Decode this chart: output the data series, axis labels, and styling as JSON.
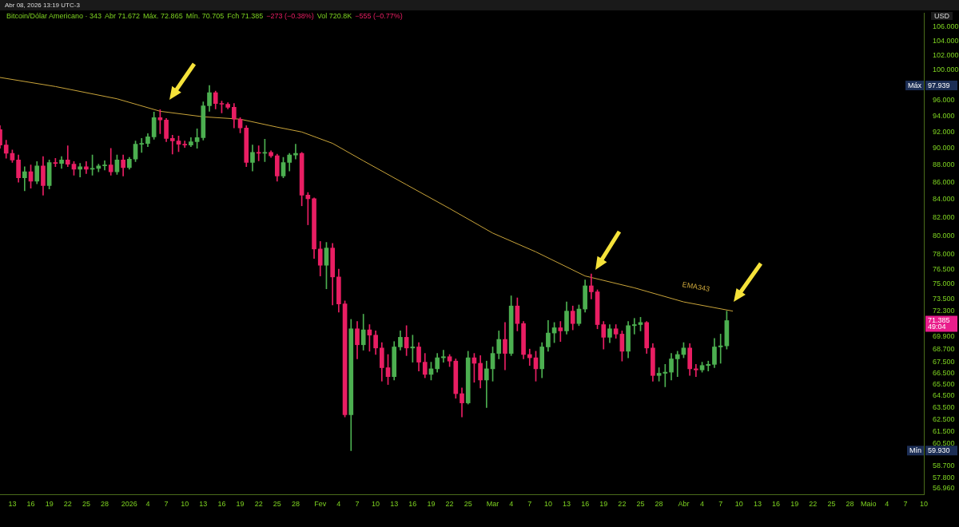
{
  "chart_data": {
    "type": "candlestick",
    "title": "Bitcoin/Dólar Americano · 343",
    "annotations": [
      "Abr 08, 2026 13:19 UTC-3",
      "Abr 71.672",
      "Máx. 72.865",
      "Mín. 70.705",
      "Fch 71.385",
      "−273 (−0.38%)",
      "Vol 720.8K",
      "−555 (−0.77%)",
      "Máx 97.939",
      "Mín 59.930",
      "71.385 49:04"
    ],
    "x": [
      "2025-12-11",
      "2025-12-12",
      "2025-12-13",
      "2025-12-14",
      "2025-12-15",
      "2025-12-16",
      "2025-12-17",
      "2025-12-18",
      "2025-12-19",
      "2025-12-20",
      "2025-12-21",
      "2025-12-22",
      "2025-12-23",
      "2025-12-24",
      "2025-12-25",
      "2025-12-26",
      "2025-12-27",
      "2025-12-28",
      "2025-12-29",
      "2025-12-30",
      "2025-12-31",
      "2026-01-01",
      "2026-01-02",
      "2026-01-03",
      "2026-01-04",
      "2026-01-05",
      "2026-01-06",
      "2026-01-07",
      "2026-01-08",
      "2026-01-09",
      "2026-01-10",
      "2026-01-11",
      "2026-01-12",
      "2026-01-13",
      "2026-01-14",
      "2026-01-15",
      "2026-01-16",
      "2026-01-17",
      "2026-01-18",
      "2026-01-19",
      "2026-01-20",
      "2026-01-21",
      "2026-01-22",
      "2026-01-23",
      "2026-01-24",
      "2026-01-25",
      "2026-01-26",
      "2026-01-27",
      "2026-01-28",
      "2026-01-29",
      "2026-01-30",
      "2026-01-31",
      "2026-02-01",
      "2026-02-02",
      "2026-02-03",
      "2026-02-04",
      "2026-02-05",
      "2026-02-06",
      "2026-02-07",
      "2026-02-08",
      "2026-02-09",
      "2026-02-10",
      "2026-02-11",
      "2026-02-12",
      "2026-02-13",
      "2026-02-14",
      "2026-02-15",
      "2026-02-16",
      "2026-02-17",
      "2026-02-18",
      "2026-02-19",
      "2026-02-20",
      "2026-02-21",
      "2026-02-22",
      "2026-02-23",
      "2026-02-24",
      "2026-02-25",
      "2026-02-26",
      "2026-02-27",
      "2026-02-28",
      "2026-03-01",
      "2026-03-02",
      "2026-03-03",
      "2026-03-04",
      "2026-03-05",
      "2026-03-06",
      "2026-03-07",
      "2026-03-08",
      "2026-03-09",
      "2026-03-10",
      "2026-03-11",
      "2026-03-12",
      "2026-03-13",
      "2026-03-14",
      "2026-03-15",
      "2026-03-16",
      "2026-03-17",
      "2026-03-18",
      "2026-03-19",
      "2026-03-20",
      "2026-03-21",
      "2026-03-22",
      "2026-03-23",
      "2026-03-24",
      "2026-03-25",
      "2026-03-26",
      "2026-03-27",
      "2026-03-28",
      "2026-03-29",
      "2026-03-30",
      "2026-03-31",
      "2026-04-01",
      "2026-04-02",
      "2026-04-03",
      "2026-04-04",
      "2026-04-05",
      "2026-04-06",
      "2026-04-07",
      "2026-04-08"
    ],
    "ohlc": [
      [
        92.3,
        92.8,
        90.0,
        90.4
      ],
      [
        90.4,
        91.0,
        88.8,
        89.4
      ],
      [
        89.4,
        89.8,
        88.3,
        88.6
      ],
      [
        88.6,
        89.2,
        86.0,
        86.5
      ],
      [
        86.5,
        87.8,
        85.0,
        87.2
      ],
      [
        87.2,
        88.0,
        85.3,
        86.1
      ],
      [
        86.1,
        88.4,
        85.8,
        87.9
      ],
      [
        87.9,
        89.0,
        84.5,
        85.6
      ],
      [
        85.6,
        88.6,
        85.2,
        88.3
      ],
      [
        88.3,
        88.8,
        87.8,
        88.2
      ],
      [
        88.2,
        89.0,
        87.6,
        88.6
      ],
      [
        88.6,
        90.3,
        87.8,
        88.1
      ],
      [
        88.1,
        88.4,
        86.8,
        87.5
      ],
      [
        87.5,
        88.2,
        86.6,
        87.8
      ],
      [
        87.8,
        88.4,
        87.0,
        87.5
      ],
      [
        87.5,
        89.2,
        86.8,
        87.6
      ],
      [
        87.6,
        88.1,
        87.2,
        87.9
      ],
      [
        87.9,
        88.5,
        87.4,
        88.0
      ],
      [
        88.0,
        90.0,
        86.8,
        87.2
      ],
      [
        87.2,
        89.2,
        86.9,
        88.6
      ],
      [
        88.6,
        89.2,
        86.7,
        87.7
      ],
      [
        87.7,
        88.9,
        87.5,
        88.7
      ],
      [
        88.7,
        90.9,
        88.4,
        90.5
      ],
      [
        90.5,
        91.2,
        89.5,
        90.6
      ],
      [
        90.6,
        91.8,
        90.2,
        91.4
      ],
      [
        91.4,
        94.5,
        91.1,
        93.8
      ],
      [
        93.8,
        94.8,
        91.8,
        93.5
      ],
      [
        93.5,
        93.7,
        90.8,
        91.2
      ],
      [
        91.2,
        91.6,
        89.3,
        90.9
      ],
      [
        90.9,
        91.5,
        89.6,
        90.5
      ],
      [
        90.5,
        90.9,
        90.1,
        90.4
      ],
      [
        90.4,
        91.3,
        90.2,
        90.8
      ],
      [
        90.8,
        92.4,
        90.0,
        91.3
      ],
      [
        91.3,
        95.8,
        91.0,
        95.3
      ],
      [
        95.3,
        97.939,
        94.6,
        97.0
      ],
      [
        97.0,
        97.2,
        94.9,
        95.6
      ],
      [
        95.6,
        95.9,
        94.4,
        95.5
      ],
      [
        95.5,
        95.7,
        94.9,
        95.1
      ],
      [
        95.1,
        95.6,
        92.5,
        93.6
      ],
      [
        93.6,
        93.8,
        91.9,
        92.5
      ],
      [
        92.5,
        92.8,
        87.8,
        88.3
      ],
      [
        88.3,
        90.4,
        87.3,
        89.5
      ],
      [
        89.5,
        90.3,
        88.5,
        89.4
      ],
      [
        89.4,
        91.1,
        88.4,
        89.5
      ],
      [
        89.5,
        89.7,
        88.9,
        89.1
      ],
      [
        89.1,
        89.3,
        86.1,
        86.7
      ],
      [
        86.7,
        88.9,
        86.5,
        88.3
      ],
      [
        88.3,
        89.4,
        87.3,
        89.2
      ],
      [
        89.2,
        90.5,
        88.7,
        89.4
      ],
      [
        89.4,
        89.5,
        83.3,
        84.5
      ],
      [
        84.5,
        84.8,
        81.2,
        84.1
      ],
      [
        84.1,
        84.2,
        77.6,
        78.6
      ],
      [
        78.6,
        79.4,
        75.8,
        76.9
      ],
      [
        76.9,
        79.3,
        74.5,
        78.7
      ],
      [
        78.7,
        79.2,
        72.9,
        75.7
      ],
      [
        75.7,
        76.5,
        72.2,
        73.0
      ],
      [
        73.0,
        73.3,
        62.7,
        62.9
      ],
      [
        62.9,
        71.5,
        59.93,
        70.6
      ],
      [
        70.6,
        71.3,
        67.8,
        69.1
      ],
      [
        69.1,
        72.0,
        68.6,
        70.5
      ],
      [
        70.5,
        71.0,
        68.5,
        70.0
      ],
      [
        70.0,
        70.4,
        68.2,
        68.8
      ],
      [
        68.8,
        69.3,
        65.8,
        67.0
      ],
      [
        67.0,
        68.2,
        65.5,
        66.2
      ],
      [
        66.2,
        69.4,
        65.9,
        68.9
      ],
      [
        68.9,
        70.4,
        68.6,
        69.8
      ],
      [
        69.8,
        70.9,
        68.1,
        68.8
      ],
      [
        68.8,
        70.0,
        67.5,
        68.9
      ],
      [
        68.9,
        69.3,
        66.7,
        67.5
      ],
      [
        67.5,
        68.3,
        66.1,
        66.4
      ],
      [
        66.4,
        67.5,
        65.9,
        66.9
      ],
      [
        66.9,
        68.3,
        66.6,
        67.9
      ],
      [
        67.9,
        68.6,
        67.5,
        68.0
      ],
      [
        68.0,
        68.2,
        67.1,
        67.6
      ],
      [
        67.6,
        67.8,
        64.3,
        64.7
      ],
      [
        64.7,
        65.2,
        62.7,
        63.9
      ],
      [
        63.9,
        68.5,
        63.8,
        67.9
      ],
      [
        67.9,
        68.3,
        65.7,
        67.4
      ],
      [
        67.4,
        68.1,
        65.2,
        65.9
      ],
      [
        65.9,
        67.6,
        63.5,
        66.9
      ],
      [
        66.9,
        68.9,
        65.8,
        68.3
      ],
      [
        68.3,
        70.4,
        67.8,
        69.6
      ],
      [
        69.6,
        71.2,
        66.8,
        68.3
      ],
      [
        68.3,
        73.8,
        68.1,
        72.8
      ],
      [
        72.8,
        73.6,
        70.4,
        71.1
      ],
      [
        71.1,
        71.3,
        67.8,
        68.2
      ],
      [
        68.2,
        68.7,
        67.2,
        67.9
      ],
      [
        67.9,
        68.5,
        65.8,
        66.9
      ],
      [
        66.9,
        69.3,
        66.1,
        68.9
      ],
      [
        68.9,
        71.4,
        68.5,
        70.2
      ],
      [
        70.2,
        71.2,
        69.3,
        70.7
      ],
      [
        70.7,
        71.3,
        69.4,
        70.4
      ],
      [
        70.4,
        73.2,
        70.1,
        72.3
      ],
      [
        72.3,
        72.8,
        70.5,
        71.1
      ],
      [
        71.1,
        72.9,
        70.9,
        72.5
      ],
      [
        72.5,
        75.4,
        72.2,
        74.8
      ],
      [
        74.8,
        76.0,
        73.5,
        74.2
      ],
      [
        74.2,
        74.4,
        70.6,
        71.0
      ],
      [
        71.0,
        71.3,
        68.7,
        69.8
      ],
      [
        69.8,
        71.0,
        69.3,
        70.6
      ],
      [
        70.6,
        71.0,
        69.7,
        70.1
      ],
      [
        70.1,
        70.4,
        67.6,
        68.5
      ],
      [
        68.5,
        71.3,
        67.9,
        70.9
      ],
      [
        70.9,
        71.6,
        70.1,
        71.0
      ],
      [
        71.0,
        71.7,
        70.4,
        71.2
      ],
      [
        71.2,
        71.3,
        68.3,
        68.8
      ],
      [
        68.8,
        69.2,
        65.8,
        66.3
      ],
      [
        66.3,
        67.0,
        65.8,
        66.5
      ],
      [
        66.5,
        67.3,
        65.3,
        66.6
      ],
      [
        66.6,
        68.3,
        65.9,
        67.8
      ],
      [
        67.8,
        68.5,
        66.2,
        68.2
      ],
      [
        68.2,
        69.3,
        67.9,
        68.8
      ],
      [
        68.8,
        69.2,
        66.3,
        66.9
      ],
      [
        66.9,
        67.3,
        66.2,
        66.8
      ],
      [
        66.8,
        67.5,
        66.6,
        67.2
      ],
      [
        67.2,
        67.6,
        66.7,
        67.3
      ],
      [
        67.3,
        69.7,
        67.0,
        68.9
      ],
      [
        68.9,
        70.1,
        67.4,
        69.0
      ],
      [
        69.0,
        72.3,
        68.7,
        71.385
      ]
    ],
    "colors": [
      "#e91e63",
      "#e91e63",
      "#e91e63",
      "#e91e63",
      "#4caf50",
      "#e91e63",
      "#4caf50",
      "#e91e63",
      "#4caf50",
      "#e91e63",
      "#4caf50",
      "#e91e63",
      "#e91e63",
      "#4caf50",
      "#e91e63",
      "#4caf50",
      "#4caf50",
      "#4caf50",
      "#e91e63",
      "#4caf50",
      "#e91e63",
      "#4caf50",
      "#4caf50",
      "#4caf50",
      "#4caf50",
      "#4caf50",
      "#e91e63",
      "#e91e63",
      "#e91e63",
      "#e91e63",
      "#e91e63",
      "#4caf50",
      "#4caf50",
      "#4caf50",
      "#4caf50",
      "#e91e63",
      "#e91e63",
      "#e91e63",
      "#e91e63",
      "#e91e63",
      "#e91e63",
      "#4caf50",
      "#e91e63",
      "#4caf50",
      "#e91e63",
      "#e91e63",
      "#4caf50",
      "#4caf50",
      "#4caf50",
      "#e91e63",
      "#e91e63",
      "#e91e63",
      "#e91e63",
      "#4caf50",
      "#e91e63",
      "#e91e63",
      "#e91e63",
      "#4caf50",
      "#e91e63",
      "#4caf50",
      "#e91e63",
      "#e91e63",
      "#e91e63",
      "#e91e63",
      "#4caf50",
      "#4caf50",
      "#e91e63",
      "#4caf50",
      "#e91e63",
      "#e91e63",
      "#4caf50",
      "#4caf50",
      "#4caf50",
      "#e91e63",
      "#e91e63",
      "#e91e63",
      "#4caf50",
      "#e91e63",
      "#e91e63",
      "#4caf50",
      "#4caf50",
      "#4caf50",
      "#e91e63",
      "#4caf50",
      "#e91e63",
      "#e91e63",
      "#e91e63",
      "#e91e63",
      "#4caf50",
      "#4caf50",
      "#4caf50",
      "#e91e63",
      "#4caf50",
      "#e91e63",
      "#4caf50",
      "#4caf50",
      "#e91e63",
      "#e91e63",
      "#e91e63",
      "#4caf50",
      "#e91e63",
      "#e91e63",
      "#4caf50",
      "#4caf50",
      "#4caf50",
      "#e91e63",
      "#e91e63",
      "#4caf50",
      "#4caf50",
      "#4caf50",
      "#4caf50",
      "#4caf50",
      "#e91e63",
      "#e91e63",
      "#4caf50",
      "#4caf50",
      "#4caf50",
      "#4caf50",
      "#4caf50"
    ],
    "series": [
      {
        "type": "line",
        "name": "EMA343",
        "color": "#c9a43a",
        "x": [
          "2025-12-11",
          "2025-12-20",
          "2025-12-30",
          "2026-01-06",
          "2026-01-13",
          "2026-01-19",
          "2026-01-25",
          "2026-01-29",
          "2026-02-03",
          "2026-02-08",
          "2026-02-15",
          "2026-02-22",
          "2026-03-01",
          "2026-03-08",
          "2026-03-16",
          "2026-03-24",
          "2026-04-01",
          "2026-04-09"
        ],
        "values": [
          99.0,
          97.8,
          96.2,
          94.6,
          93.9,
          93.6,
          92.6,
          92.0,
          90.6,
          88.5,
          85.7,
          83.0,
          80.3,
          78.3,
          75.8,
          74.6,
          73.2,
          72.3
        ]
      }
    ],
    "log": "y",
    "grid": false,
    "legend": false,
    "xlim": [
      "2025-12-11",
      "2026-05-10"
    ],
    "xticks": [
      {
        "value": "2025-12-13",
        "label": "13"
      },
      {
        "value": "2025-12-16",
        "label": "16"
      },
      {
        "value": "2025-12-19",
        "label": "19"
      },
      {
        "value": "2025-12-22",
        "label": "22"
      },
      {
        "value": "2025-12-25",
        "label": "25"
      },
      {
        "value": "2025-12-28",
        "label": "28"
      },
      {
        "value": "2026-01-01",
        "label": "2026"
      },
      {
        "value": "2026-01-04",
        "label": "4"
      },
      {
        "value": "2026-01-07",
        "label": "7"
      },
      {
        "value": "2026-01-10",
        "label": "10"
      },
      {
        "value": "2026-01-13",
        "label": "13"
      },
      {
        "value": "2026-01-16",
        "label": "16"
      },
      {
        "value": "2026-01-19",
        "label": "19"
      },
      {
        "value": "2026-01-22",
        "label": "22"
      },
      {
        "value": "2026-01-25",
        "label": "25"
      },
      {
        "value": "2026-01-28",
        "label": "28"
      },
      {
        "value": "2026-02-01",
        "label": "Fev"
      },
      {
        "value": "2026-02-04",
        "label": "4"
      },
      {
        "value": "2026-02-07",
        "label": "7"
      },
      {
        "value": "2026-02-10",
        "label": "10"
      },
      {
        "value": "2026-02-13",
        "label": "13"
      },
      {
        "value": "2026-02-16",
        "label": "16"
      },
      {
        "value": "2026-02-19",
        "label": "19"
      },
      {
        "value": "2026-02-22",
        "label": "22"
      },
      {
        "value": "2026-02-25",
        "label": "25"
      },
      {
        "value": "2026-03-01",
        "label": "Mar"
      },
      {
        "value": "2026-03-04",
        "label": "4"
      },
      {
        "value": "2026-03-07",
        "label": "7"
      },
      {
        "value": "2026-03-10",
        "label": "10"
      },
      {
        "value": "2026-03-13",
        "label": "13"
      },
      {
        "value": "2026-03-16",
        "label": "16"
      },
      {
        "value": "2026-03-19",
        "label": "19"
      },
      {
        "value": "2026-03-22",
        "label": "22"
      },
      {
        "value": "2026-03-25",
        "label": "25"
      },
      {
        "value": "2026-03-28",
        "label": "28"
      },
      {
        "value": "2026-04-01",
        "label": "Abr"
      },
      {
        "value": "2026-04-04",
        "label": "4"
      },
      {
        "value": "2026-04-07",
        "label": "7"
      },
      {
        "value": "2026-04-10",
        "label": "10"
      },
      {
        "value": "2026-04-13",
        "label": "13"
      },
      {
        "value": "2026-04-16",
        "label": "16"
      },
      {
        "value": "2026-04-19",
        "label": "19"
      },
      {
        "value": "2026-04-22",
        "label": "22"
      },
      {
        "value": "2026-04-25",
        "label": "25"
      },
      {
        "value": "2026-04-28",
        "label": "28"
      },
      {
        "value": "2026-05-01",
        "label": "Maio"
      },
      {
        "value": "2026-05-04",
        "label": "4"
      },
      {
        "value": "2026-05-07",
        "label": "7"
      },
      {
        "value": "2026-05-10",
        "label": "10"
      }
    ],
    "ylabel": "USD",
    "ylim": [
      56.5,
      108
    ],
    "yticks": [
      {
        "value": 106,
        "label": "106.000"
      },
      {
        "value": 104,
        "label": "104.000"
      },
      {
        "value": 102,
        "label": "102.000"
      },
      {
        "value": 100,
        "label": "100.000"
      },
      {
        "value": 96,
        "label": "96.000"
      },
      {
        "value": 94,
        "label": "94.000"
      },
      {
        "value": 92,
        "label": "92.000"
      },
      {
        "value": 90,
        "label": "90.000"
      },
      {
        "value": 88,
        "label": "88.000"
      },
      {
        "value": 86,
        "label": "86.000"
      },
      {
        "value": 84,
        "label": "84.000"
      },
      {
        "value": 82,
        "label": "82.000"
      },
      {
        "value": 80,
        "label": "80.000"
      },
      {
        "value": 78,
        "label": "78.000"
      },
      {
        "value": 76.5,
        "label": "76.500"
      },
      {
        "value": 75,
        "label": "75.000"
      },
      {
        "value": 73.5,
        "label": "73.500"
      },
      {
        "value": 72.3,
        "label": "72.300"
      },
      {
        "value": 69.9,
        "label": "69.900"
      },
      {
        "value": 68.7,
        "label": "68.700"
      },
      {
        "value": 67.5,
        "label": "67.500"
      },
      {
        "value": 66.5,
        "label": "66.500"
      },
      {
        "value": 65.5,
        "label": "65.500"
      },
      {
        "value": 64.5,
        "label": "64.500"
      },
      {
        "value": 63.5,
        "label": "63.500"
      },
      {
        "value": 62.5,
        "label": "62.500"
      },
      {
        "value": 61.5,
        "label": "61.500"
      },
      {
        "value": 60.5,
        "label": "60.500"
      },
      {
        "value": 58.7,
        "label": "58.700"
      },
      {
        "value": 57.8,
        "label": "57.800"
      },
      {
        "value": 56.96,
        "label": "56.960"
      }
    ]
  }
}
